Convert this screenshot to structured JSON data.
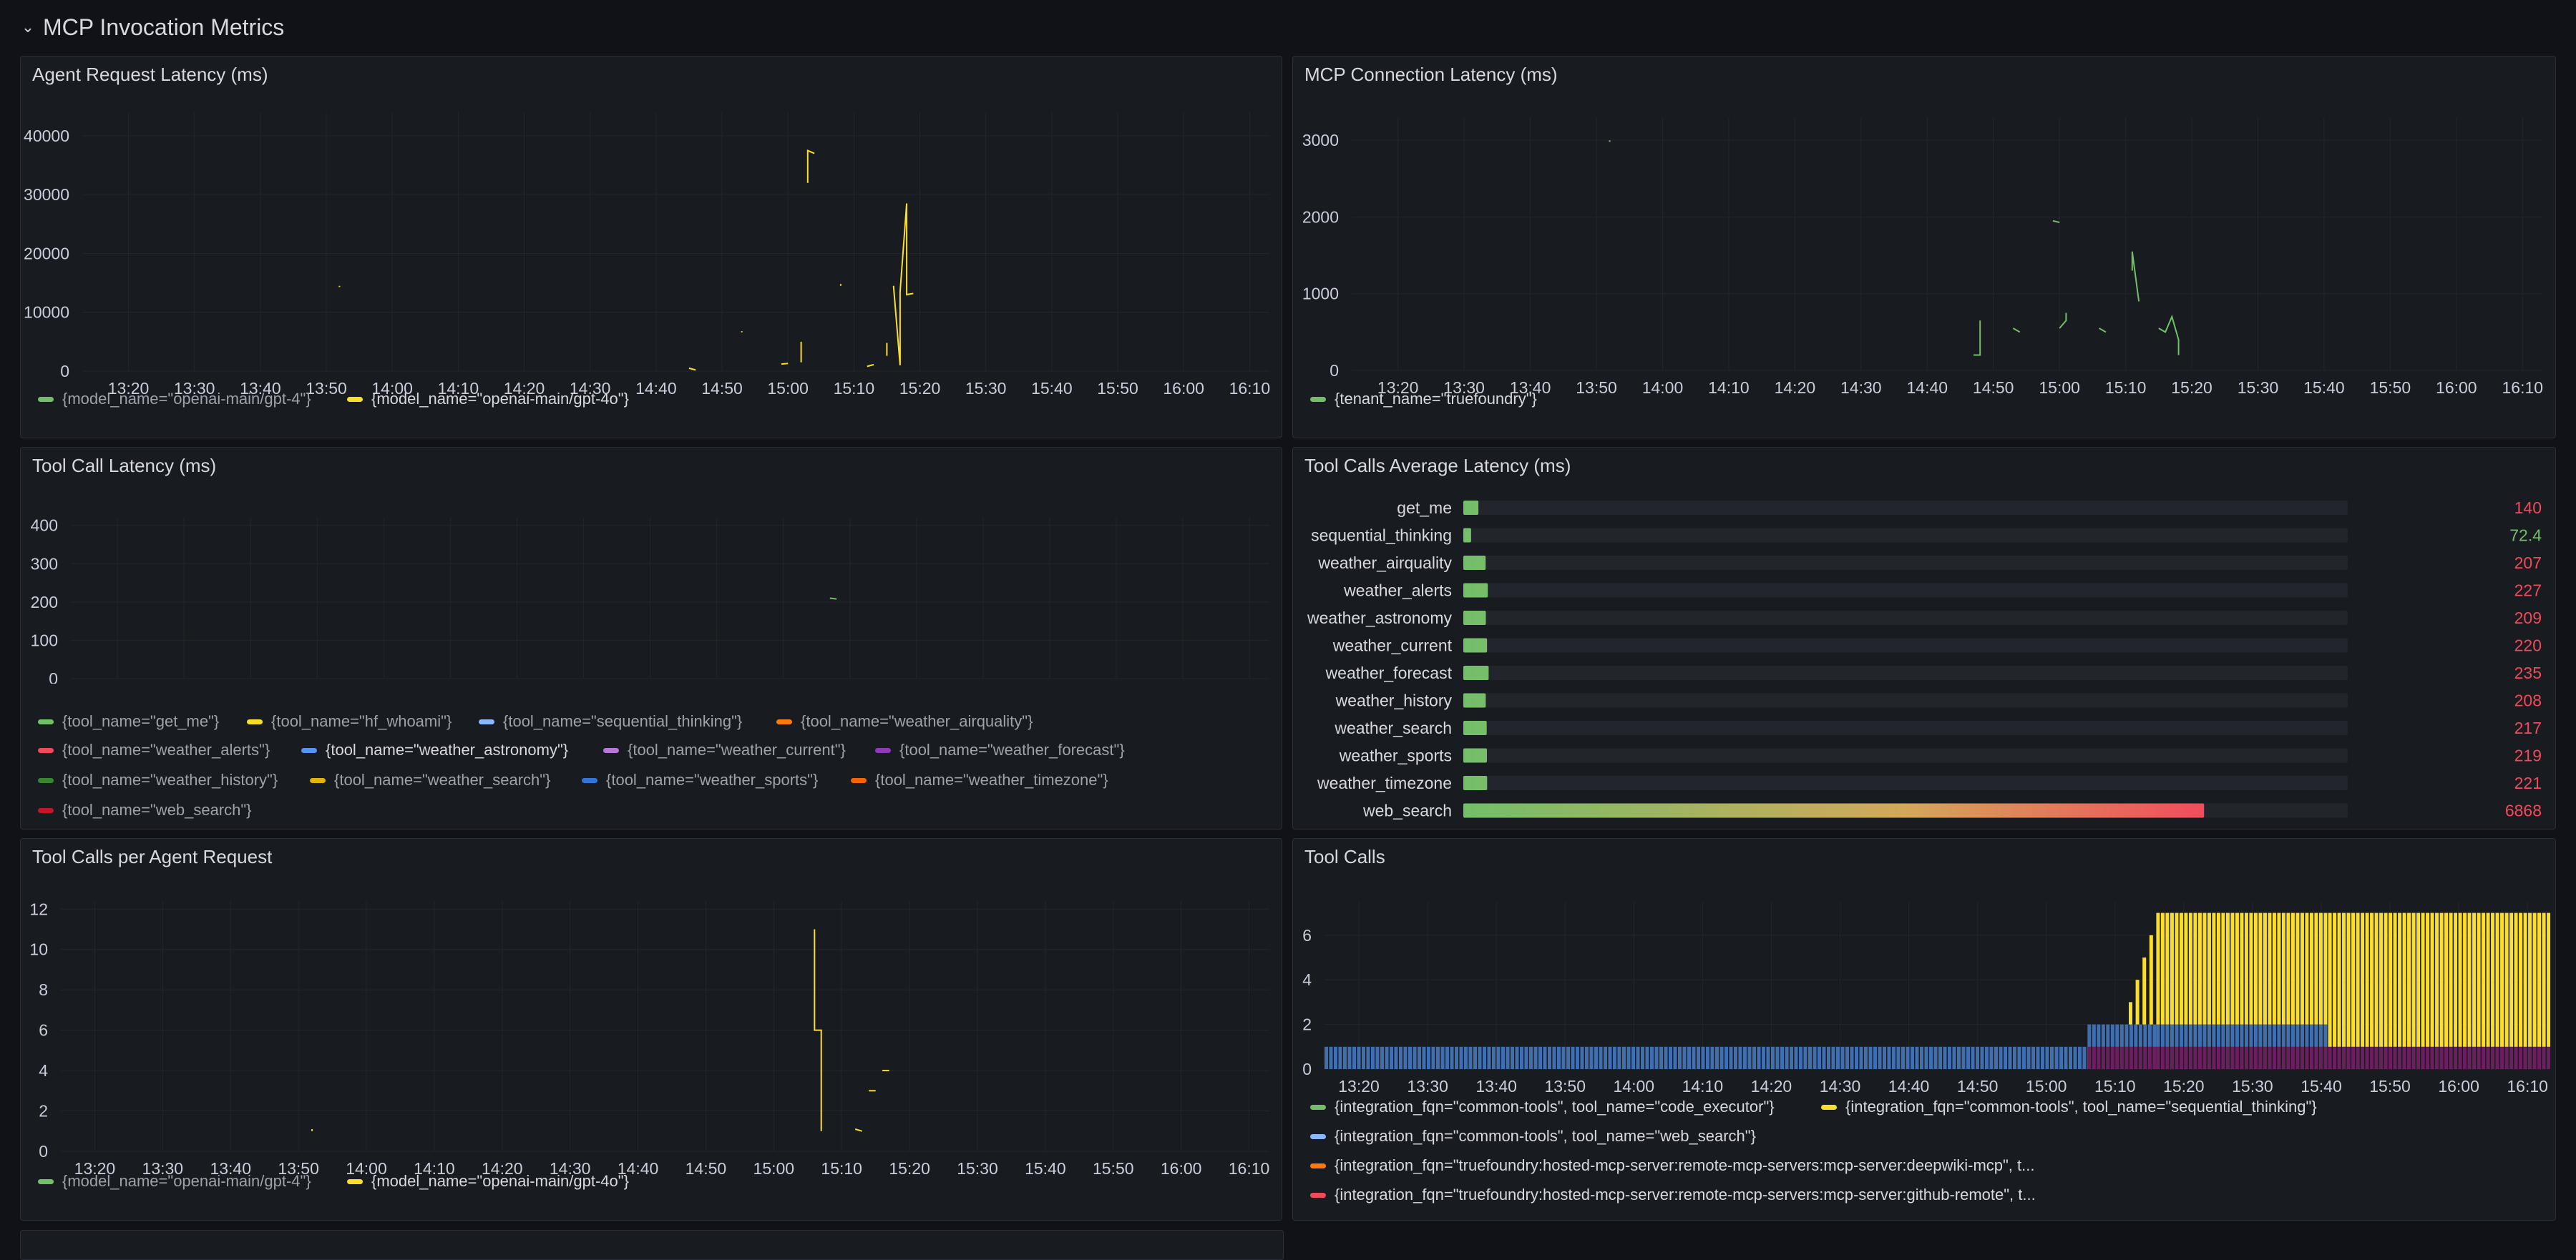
{
  "row_header": {
    "title": "MCP Invocation Metrics"
  },
  "colors": {
    "green": "#73bf69",
    "yellow": "#fade2a",
    "light_blue": "#8ab8ff",
    "orange": "#ff780a",
    "red": "#f2495c",
    "blue": "#5794f2",
    "purple": "#b877d9",
    "dark_purple": "#8f3bb8",
    "dark_green": "#37872d",
    "dark_yellow": "#e0b400",
    "dark_blue": "#3274d9",
    "dark_orange": "#fa6400",
    "dark_red": "#c4162a",
    "bar_blue": "#3f6fb0",
    "bar_purple": "#6c1f5f"
  },
  "panels": {
    "agent_latency": {
      "title": "Agent Request Latency (ms)",
      "legend": [
        {
          "label": "{model_name=\"openai-main/gpt-4\"}",
          "color": "#73bf69",
          "active": false
        },
        {
          "label": "{model_name=\"openai-main/gpt-4o\"}",
          "color": "#fade2a",
          "active": true
        }
      ]
    },
    "mcp_latency": {
      "title": "MCP Connection Latency (ms)",
      "legend": [
        {
          "label": "{tenant_name=\"truefoundry\"}",
          "color": "#73bf69",
          "active": true
        }
      ]
    },
    "tool_latency": {
      "title": "Tool Call Latency (ms)",
      "legend": [
        {
          "label": "{tool_name=\"get_me\"}",
          "color": "#73bf69",
          "active": false
        },
        {
          "label": "{tool_name=\"hf_whoami\"}",
          "color": "#fade2a",
          "active": false
        },
        {
          "label": "{tool_name=\"sequential_thinking\"}",
          "color": "#8ab8ff",
          "active": false
        },
        {
          "label": "{tool_name=\"weather_airquality\"}",
          "color": "#ff780a",
          "active": false
        },
        {
          "label": "{tool_name=\"weather_alerts\"}",
          "color": "#f2495c",
          "active": false
        },
        {
          "label": "{tool_name=\"weather_astronomy\"}",
          "color": "#5794f2",
          "active": true
        },
        {
          "label": "{tool_name=\"weather_current\"}",
          "color": "#b877d9",
          "active": false
        },
        {
          "label": "{tool_name=\"weather_forecast\"}",
          "color": "#8f3bb8",
          "active": false
        },
        {
          "label": "{tool_name=\"weather_history\"}",
          "color": "#37872d",
          "active": false
        },
        {
          "label": "{tool_name=\"weather_search\"}",
          "color": "#e0b400",
          "active": false
        },
        {
          "label": "{tool_name=\"weather_sports\"}",
          "color": "#3274d9",
          "active": false
        },
        {
          "label": "{tool_name=\"weather_timezone\"}",
          "color": "#fa6400",
          "active": false
        },
        {
          "label": "{tool_name=\"web_search\"}",
          "color": "#c4162a",
          "active": false
        }
      ]
    },
    "avg_latency": {
      "title": "Tool Calls Average Latency (ms)"
    },
    "calls_per_request": {
      "title": "Tool Calls per Agent Request",
      "legend": [
        {
          "label": "{model_name=\"openai-main/gpt-4\"}",
          "color": "#73bf69",
          "active": false
        },
        {
          "label": "{model_name=\"openai-main/gpt-4o\"}",
          "color": "#fade2a",
          "active": true
        }
      ]
    },
    "tool_calls": {
      "title": "Tool Calls",
      "legend": [
        {
          "label": "{integration_fqn=\"common-tools\", tool_name=\"code_executor\"}",
          "color": "#73bf69",
          "active": true
        },
        {
          "label": "{integration_fqn=\"common-tools\", tool_name=\"sequential_thinking\"}",
          "color": "#fade2a",
          "active": true
        },
        {
          "label": "{integration_fqn=\"common-tools\", tool_name=\"web_search\"}",
          "color": "#8ab8ff",
          "active": true
        },
        {
          "label": "{integration_fqn=\"truefoundry:hosted-mcp-server:remote-mcp-servers:mcp-server:deepwiki-mcp\", t...",
          "color": "#ff780a",
          "active": true
        },
        {
          "label": "{integration_fqn=\"truefoundry:hosted-mcp-server:remote-mcp-servers:mcp-server:github-remote\", t...",
          "color": "#f2495c",
          "active": true
        }
      ]
    }
  },
  "time_ticks": [
    "13:20",
    "13:30",
    "13:40",
    "13:50",
    "14:00",
    "14:10",
    "14:20",
    "14:30",
    "14:40",
    "14:50",
    "15:00",
    "15:10",
    "15:20",
    "15:30",
    "15:40",
    "15:50",
    "16:00",
    "16:10"
  ],
  "chart_data": [
    {
      "id": "agent_latency",
      "type": "line",
      "title": "Agent Request Latency (ms)",
      "y_ticks": [
        0,
        10000,
        20000,
        30000,
        40000
      ],
      "ylim": [
        0,
        44000
      ],
      "xlim": [
        "13:13",
        "16:13"
      ],
      "series": [
        {
          "name": "{model_name=\"openai-main/gpt-4\"}",
          "color": "#73bf69",
          "points": []
        },
        {
          "name": "{model_name=\"openai-main/gpt-4o\"}",
          "color": "#fade2a",
          "segments": [
            [
              [
                "13:52",
                14500
              ],
              [
                "13:52",
                14300
              ]
            ],
            [
              [
                "14:45",
                500
              ],
              [
                "14:46",
                200
              ]
            ],
            [
              [
                "14:53",
                6800
              ],
              [
                "14:53",
                6600
              ]
            ],
            [
              [
                "14:59",
                1200
              ],
              [
                "15:00",
                1300
              ]
            ],
            [
              [
                "15:02",
                1500
              ],
              [
                "15:02",
                5000
              ]
            ],
            [
              [
                "15:03",
                32000
              ],
              [
                "15:03",
                37500
              ],
              [
                "15:04",
                37000
              ]
            ],
            [
              [
                "15:08",
                14800
              ],
              [
                "15:08",
                14500
              ]
            ],
            [
              [
                "15:12",
                800
              ],
              [
                "15:13",
                1100
              ]
            ],
            [
              [
                "15:15",
                2600
              ],
              [
                "15:15",
                4800
              ]
            ],
            [
              [
                "15:16",
                14500
              ],
              [
                "15:17",
                1000
              ],
              [
                "15:17",
                13500
              ],
              [
                "15:18",
                28500
              ],
              [
                "15:18",
                13000
              ],
              [
                "15:19",
                13200
              ]
            ]
          ]
        }
      ]
    },
    {
      "id": "mcp_latency",
      "type": "line",
      "title": "MCP Connection Latency (ms)",
      "y_ticks": [
        0,
        1000,
        2000,
        3000
      ],
      "ylim": [
        0,
        3300
      ],
      "xlim": [
        "13:13",
        "16:13"
      ],
      "series": [
        {
          "name": "{tenant_name=\"truefoundry\"}",
          "color": "#73bf69",
          "segments": [
            [
              [
                "13:52",
                3000
              ],
              [
                "13:52",
                2980
              ]
            ],
            [
              [
                "14:47",
                200
              ],
              [
                "14:48",
                200
              ],
              [
                "14:48",
                650
              ]
            ],
            [
              [
                "14:53",
                550
              ],
              [
                "14:54",
                500
              ]
            ],
            [
              [
                "14:59",
                1950
              ],
              [
                "15:00",
                1930
              ]
            ],
            [
              [
                "15:00",
                550
              ],
              [
                "15:01",
                650
              ],
              [
                "15:01",
                750
              ]
            ],
            [
              [
                "15:06",
                550
              ],
              [
                "15:07",
                500
              ]
            ],
            [
              [
                "15:11",
                1300
              ],
              [
                "15:11",
                1550
              ],
              [
                "15:12",
                900
              ]
            ],
            [
              [
                "15:15",
                550
              ],
              [
                "15:16",
                500
              ],
              [
                "15:17",
                700
              ],
              [
                "15:18",
                400
              ],
              [
                "15:18",
                200
              ]
            ]
          ]
        }
      ]
    },
    {
      "id": "tool_latency",
      "type": "line",
      "title": "Tool Call Latency (ms)",
      "y_ticks": [
        0,
        100,
        200,
        300,
        400
      ],
      "ylim": [
        0,
        420
      ],
      "xlim": [
        "13:13",
        "16:13"
      ],
      "series": [
        {
          "name": "{tool_name=\"weather_astronomy\"}",
          "color": "#73bf69",
          "segments": [
            [
              [
                "15:07",
                210
              ],
              [
                "15:08",
                208
              ]
            ]
          ]
        }
      ]
    },
    {
      "id": "avg_latency",
      "type": "bar",
      "title": "Tool Calls Average Latency (ms)",
      "categories": [
        "get_me",
        "sequential_thinking",
        "weather_airquality",
        "weather_alerts",
        "weather_astronomy",
        "weather_current",
        "weather_forecast",
        "weather_history",
        "weather_search",
        "weather_sports",
        "weather_timezone",
        "web_search"
      ],
      "values": [
        140,
        72.4,
        207,
        227,
        209,
        220,
        235,
        208,
        217,
        219,
        221,
        6868
      ],
      "value_labels": [
        "140",
        "72.4",
        "207",
        "227",
        "209",
        "220",
        "235",
        "208",
        "217",
        "219",
        "221",
        "6868"
      ],
      "max": 8200
    },
    {
      "id": "calls_per_request",
      "type": "line",
      "title": "Tool Calls per Agent Request",
      "y_ticks": [
        0,
        2,
        4,
        6,
        8,
        10,
        12
      ],
      "ylim": [
        0,
        12.4
      ],
      "xlim": [
        "13:15",
        "16:13"
      ],
      "series": [
        {
          "name": "{model_name=\"openai-main/gpt-4o\"}",
          "color": "#fade2a",
          "segments": [
            [
              [
                "13:52",
                1.1
              ],
              [
                "13:52",
                1.0
              ]
            ],
            [
              [
                "15:06",
                11
              ],
              [
                "15:06",
                6
              ],
              [
                "15:07",
                6
              ],
              [
                "15:07",
                1
              ]
            ],
            [
              [
                "15:11",
                1.0
              ],
              [
                "15:11",
                1.0
              ]
            ],
            [
              [
                "15:12",
                1.1
              ],
              [
                "15:13",
                1.0
              ]
            ],
            [
              [
                "15:14",
                3.0
              ],
              [
                "15:15",
                3.0
              ]
            ],
            [
              [
                "15:16",
                4.0
              ],
              [
                "15:17",
                4.0
              ]
            ]
          ]
        }
      ]
    },
    {
      "id": "tool_calls",
      "type": "bar",
      "title": "Tool Calls",
      "y_ticks": [
        0,
        2,
        4,
        6
      ],
      "ylim": [
        0,
        7.5
      ],
      "xlim": [
        "13:15",
        "16:13"
      ],
      "stacked_regions": [
        {
          "from": "13:15",
          "to": "15:06",
          "layers": [
            {
              "color": "#3f6fb0",
              "value": 1
            }
          ]
        },
        {
          "from": "15:06",
          "to": "15:16",
          "layers": [
            {
              "color": "#6c1f5f",
              "value": 1
            },
            {
              "color": "#3f6fb0",
              "value": 1
            }
          ]
        },
        {
          "from": "15:16",
          "to": "15:41",
          "layers": [
            {
              "color": "#6c1f5f",
              "value": 1
            },
            {
              "color": "#3f6fb0",
              "value": 1
            },
            {
              "color": "#fade2a",
              "value": 5
            }
          ]
        },
        {
          "from": "15:41",
          "to": "16:13",
          "layers": [
            {
              "color": "#6c1f5f",
              "value": 1
            },
            {
              "color": "#fade2a",
              "value": 6
            }
          ]
        }
      ],
      "ramp": [
        [
          "15:12",
          1
        ],
        [
          "15:13",
          2
        ],
        [
          "15:14",
          3
        ],
        [
          "15:15",
          4
        ]
      ]
    }
  ]
}
